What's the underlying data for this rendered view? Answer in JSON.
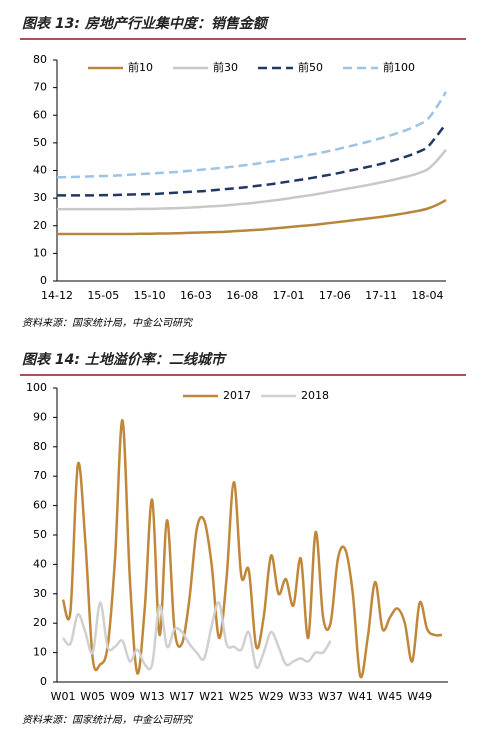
{
  "chart_data": [
    {
      "type": "line",
      "title": "图表 13: 房地产行业集中度：销售金额",
      "source": "资料来源：国家统计局，中金公司研究",
      "categories": [
        "14-12",
        null,
        null,
        null,
        null,
        "15-05",
        null,
        null,
        null,
        null,
        "15-10",
        null,
        null,
        null,
        null,
        "16-03",
        null,
        null,
        null,
        null,
        "16-08",
        null,
        null,
        null,
        null,
        "17-01",
        null,
        null,
        null,
        null,
        "17-06",
        null,
        null,
        null,
        null,
        "17-11",
        null,
        null,
        null,
        null,
        "18-04",
        null,
        null
      ],
      "series": [
        {
          "name": "前10",
          "color": "#b8863b",
          "dashed": false,
          "values": [
            17.0,
            17.0,
            17.0,
            17.0,
            17.0,
            17.0,
            17.0,
            17.0,
            17.0,
            17.1,
            17.1,
            17.2,
            17.2,
            17.3,
            17.4,
            17.5,
            17.6,
            17.7,
            17.8,
            18.0,
            18.2,
            18.4,
            18.6,
            18.9,
            19.2,
            19.5,
            19.8,
            20.1,
            20.4,
            20.8,
            21.2,
            21.6,
            22.0,
            22.4,
            22.8,
            23.2,
            23.7,
            24.2,
            24.8,
            25.4,
            26.2,
            27.5,
            29.3
          ]
        },
        {
          "name": "前30",
          "color": "#c8c8c8",
          "dashed": false,
          "values": [
            26.0,
            26.0,
            26.0,
            26.0,
            26.0,
            26.0,
            26.0,
            26.0,
            26.0,
            26.1,
            26.1,
            26.2,
            26.3,
            26.4,
            26.5,
            26.7,
            26.9,
            27.1,
            27.3,
            27.6,
            27.9,
            28.2,
            28.6,
            29.0,
            29.4,
            29.9,
            30.4,
            30.9,
            31.4,
            32.0,
            32.6,
            33.2,
            33.8,
            34.4,
            35.0,
            35.7,
            36.4,
            37.2,
            38.0,
            39.0,
            40.4,
            43.5,
            47.5
          ]
        },
        {
          "name": "前50",
          "color": "#1f3864",
          "dashed": true,
          "values": [
            31.0,
            31.0,
            31.0,
            31.0,
            31.0,
            31.1,
            31.1,
            31.2,
            31.3,
            31.4,
            31.5,
            31.6,
            31.8,
            32.0,
            32.2,
            32.4,
            32.6,
            32.9,
            33.2,
            33.5,
            33.8,
            34.2,
            34.6,
            35.0,
            35.5,
            36.0,
            36.5,
            37.0,
            37.6,
            38.2,
            38.8,
            39.5,
            40.2,
            40.9,
            41.6,
            42.4,
            43.3,
            44.3,
            45.4,
            46.7,
            48.5,
            52.5,
            57.0
          ]
        },
        {
          "name": "前100",
          "color": "#9dc3e6",
          "dashed": true,
          "values": [
            37.5,
            37.6,
            37.7,
            37.8,
            37.9,
            38.0,
            38.1,
            38.3,
            38.5,
            38.7,
            38.9,
            39.1,
            39.3,
            39.5,
            39.8,
            40.1,
            40.4,
            40.7,
            41.0,
            41.4,
            41.8,
            42.2,
            42.7,
            43.2,
            43.7,
            44.3,
            44.9,
            45.5,
            46.1,
            46.8,
            47.5,
            48.3,
            49.1,
            49.9,
            50.8,
            51.7,
            52.7,
            53.8,
            55.0,
            56.5,
            58.5,
            63.0,
            68.5
          ]
        }
      ],
      "ylim": [
        0,
        80
      ],
      "yticks": [
        0,
        10,
        20,
        30,
        40,
        50,
        60,
        70,
        80
      ],
      "legend": "top"
    },
    {
      "type": "line",
      "title": "图表 14: 土地溢价率：二线城市",
      "source": "资料来源：国家统计局，中金公司研究",
      "categories": [
        "W01",
        null,
        null,
        null,
        "W05",
        null,
        null,
        null,
        "W09",
        null,
        null,
        null,
        "W13",
        null,
        null,
        null,
        "W17",
        null,
        null,
        null,
        "W21",
        null,
        null,
        null,
        "W25",
        null,
        null,
        null,
        "W29",
        null,
        null,
        null,
        "W33",
        null,
        null,
        null,
        "W37",
        null,
        null,
        null,
        "W41",
        null,
        null,
        null,
        "W45",
        null,
        null,
        null,
        "W49",
        null,
        null,
        null
      ],
      "series": [
        {
          "name": "2017",
          "color": "#c0873a",
          "dashed": false,
          "values": [
            28,
            24,
            74,
            48,
            8,
            6,
            12,
            42,
            89,
            35,
            3,
            25,
            62,
            16,
            55,
            18,
            13,
            28,
            52,
            55,
            40,
            15,
            35,
            68,
            36,
            38,
            12,
            22,
            43,
            30,
            35,
            26,
            42,
            15,
            51,
            22,
            20,
            42,
            45,
            30,
            2,
            15,
            34,
            18,
            22,
            25,
            20,
            7,
            27,
            18,
            16,
            16
          ]
        },
        {
          "name": "2018",
          "color": "#d0d0d0",
          "dashed": false,
          "values": [
            15,
            13,
            23,
            17,
            10,
            27,
            12,
            12,
            14,
            7,
            11,
            6,
            6,
            26,
            12,
            18,
            17,
            13,
            10,
            8,
            19,
            27,
            13,
            12,
            11,
            17,
            5,
            10,
            17,
            12,
            6,
            7,
            8,
            7,
            10,
            10,
            14,
            null,
            null,
            null,
            null,
            null,
            null,
            null,
            null,
            null,
            null,
            null,
            null,
            null,
            null,
            null
          ]
        }
      ],
      "ylim": [
        0,
        100
      ],
      "yticks": [
        0,
        10,
        20,
        30,
        40,
        50,
        60,
        70,
        80,
        90,
        100
      ],
      "legend": "top"
    }
  ]
}
